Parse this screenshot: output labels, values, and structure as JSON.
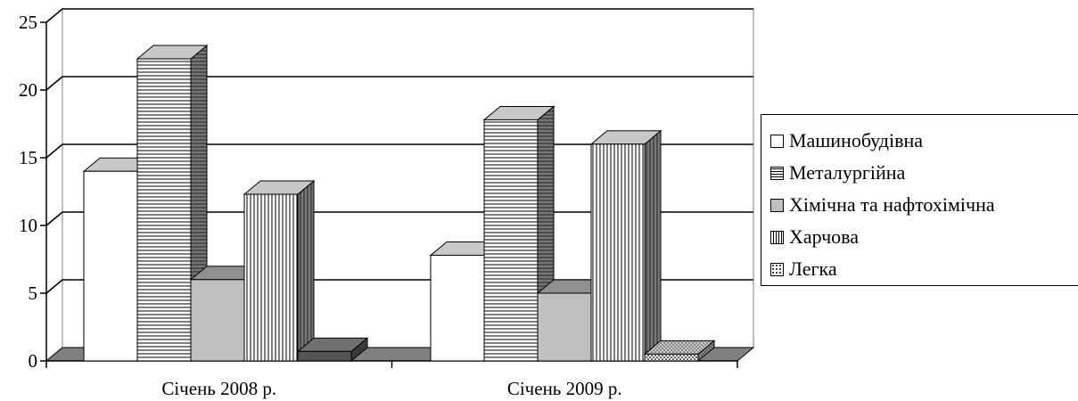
{
  "chart_data": {
    "type": "bar",
    "title": "",
    "xlabel": "",
    "ylabel": "",
    "ylim": [
      0,
      25
    ],
    "yticks": [
      0,
      5,
      10,
      15,
      20,
      25
    ],
    "grid": true,
    "three_d": true,
    "legend_position": "right",
    "categories": [
      "Січень 2008 р.",
      "Січень 2009 р."
    ],
    "series": [
      {
        "name": "Машинобудівна",
        "values": [
          14,
          7.8
        ],
        "color": "#ffffff",
        "pattern": "solid-white"
      },
      {
        "name": "Металургійна",
        "values": [
          22.3,
          17.8
        ],
        "color": "#ffffff",
        "pattern": "horizontal-lines"
      },
      {
        "name": "Хімічна та нафтохімічна",
        "values": [
          6,
          5
        ],
        "color": "#bfbfbf",
        "pattern": "solid-gray"
      },
      {
        "name": "Харчова",
        "values": [
          12.3,
          16
        ],
        "color": "#ffffff",
        "pattern": "vertical-lines"
      },
      {
        "name": "Легка",
        "values": [
          0.7,
          0.5
        ],
        "color": "#dddddd",
        "pattern": "dotted"
      }
    ]
  }
}
